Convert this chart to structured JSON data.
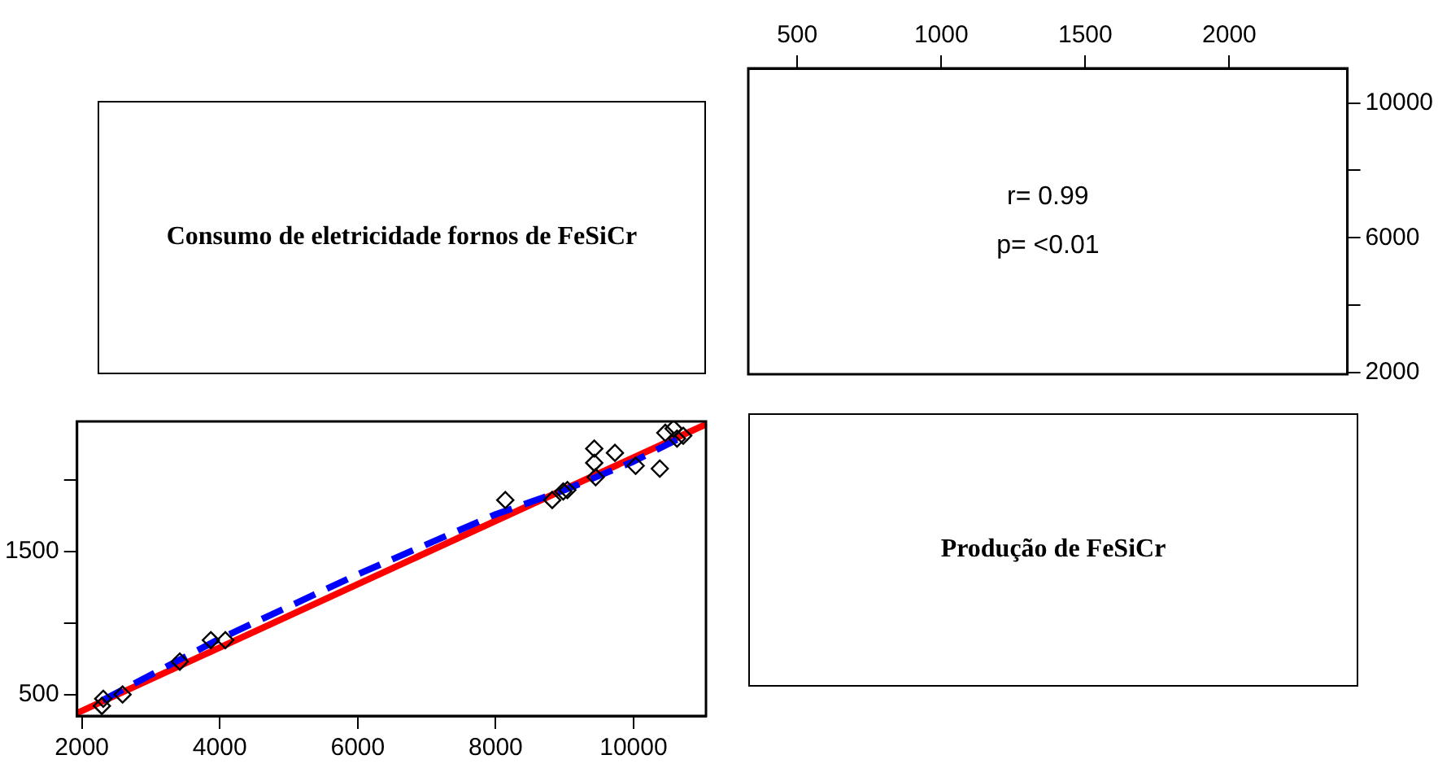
{
  "chart_data": [
    {
      "type": "other",
      "title": "Consumo de eletricidade fornos de FeSiCr"
    },
    {
      "type": "scatter",
      "annotations": [
        "r= 0.99",
        "p= <0.01"
      ],
      "xlim": [
        330,
        2410
      ],
      "xticks": [
        500,
        1000,
        1500,
        2000
      ],
      "ylim": [
        1950,
        11030
      ],
      "yticks": [
        2000,
        {
          "value": 4000,
          "label": null
        },
        6000,
        {
          "value": 8000,
          "label": null
        },
        10000
      ]
    },
    {
      "type": "scatter",
      "xlim": [
        1930,
        11050
      ],
      "xticks": [
        2000,
        4000,
        6000,
        8000,
        10000
      ],
      "ylim": [
        350,
        2410
      ],
      "yticks": [
        500,
        {
          "value": 1000,
          "label": null
        },
        1500,
        {
          "value": 2000,
          "label": null
        }
      ],
      "series": [
        {
          "type": "scatter",
          "color": "#000000",
          "marker": "diamond",
          "x": [
            2290,
            2310,
            2590,
            3420,
            3870,
            4080,
            8140,
            8820,
            8980,
            9040,
            9430,
            9430,
            9450,
            9730,
            10030,
            10380,
            10460,
            10580,
            10720,
            10630
          ],
          "values": [
            420,
            470,
            500,
            730,
            880,
            880,
            1860,
            1860,
            1920,
            1930,
            2220,
            2120,
            2020,
            2190,
            2100,
            2080,
            2330,
            2360,
            2310,
            2290
          ]
        },
        {
          "type": "line",
          "color": "#0000ff",
          "line_style": "dashed",
          "x": [
            2300,
            4000,
            6000,
            8000,
            9000,
            10000,
            10700
          ],
          "values": [
            460,
            890,
            1340,
            1760,
            1930,
            2130,
            2300
          ]
        },
        {
          "type": "line",
          "color": "#ff0000",
          "line_style": "solid",
          "x": [
            1930,
            11050
          ],
          "values": [
            370,
            2390
          ]
        }
      ]
    },
    {
      "type": "other",
      "title": "Produção de FeSiCr"
    }
  ]
}
